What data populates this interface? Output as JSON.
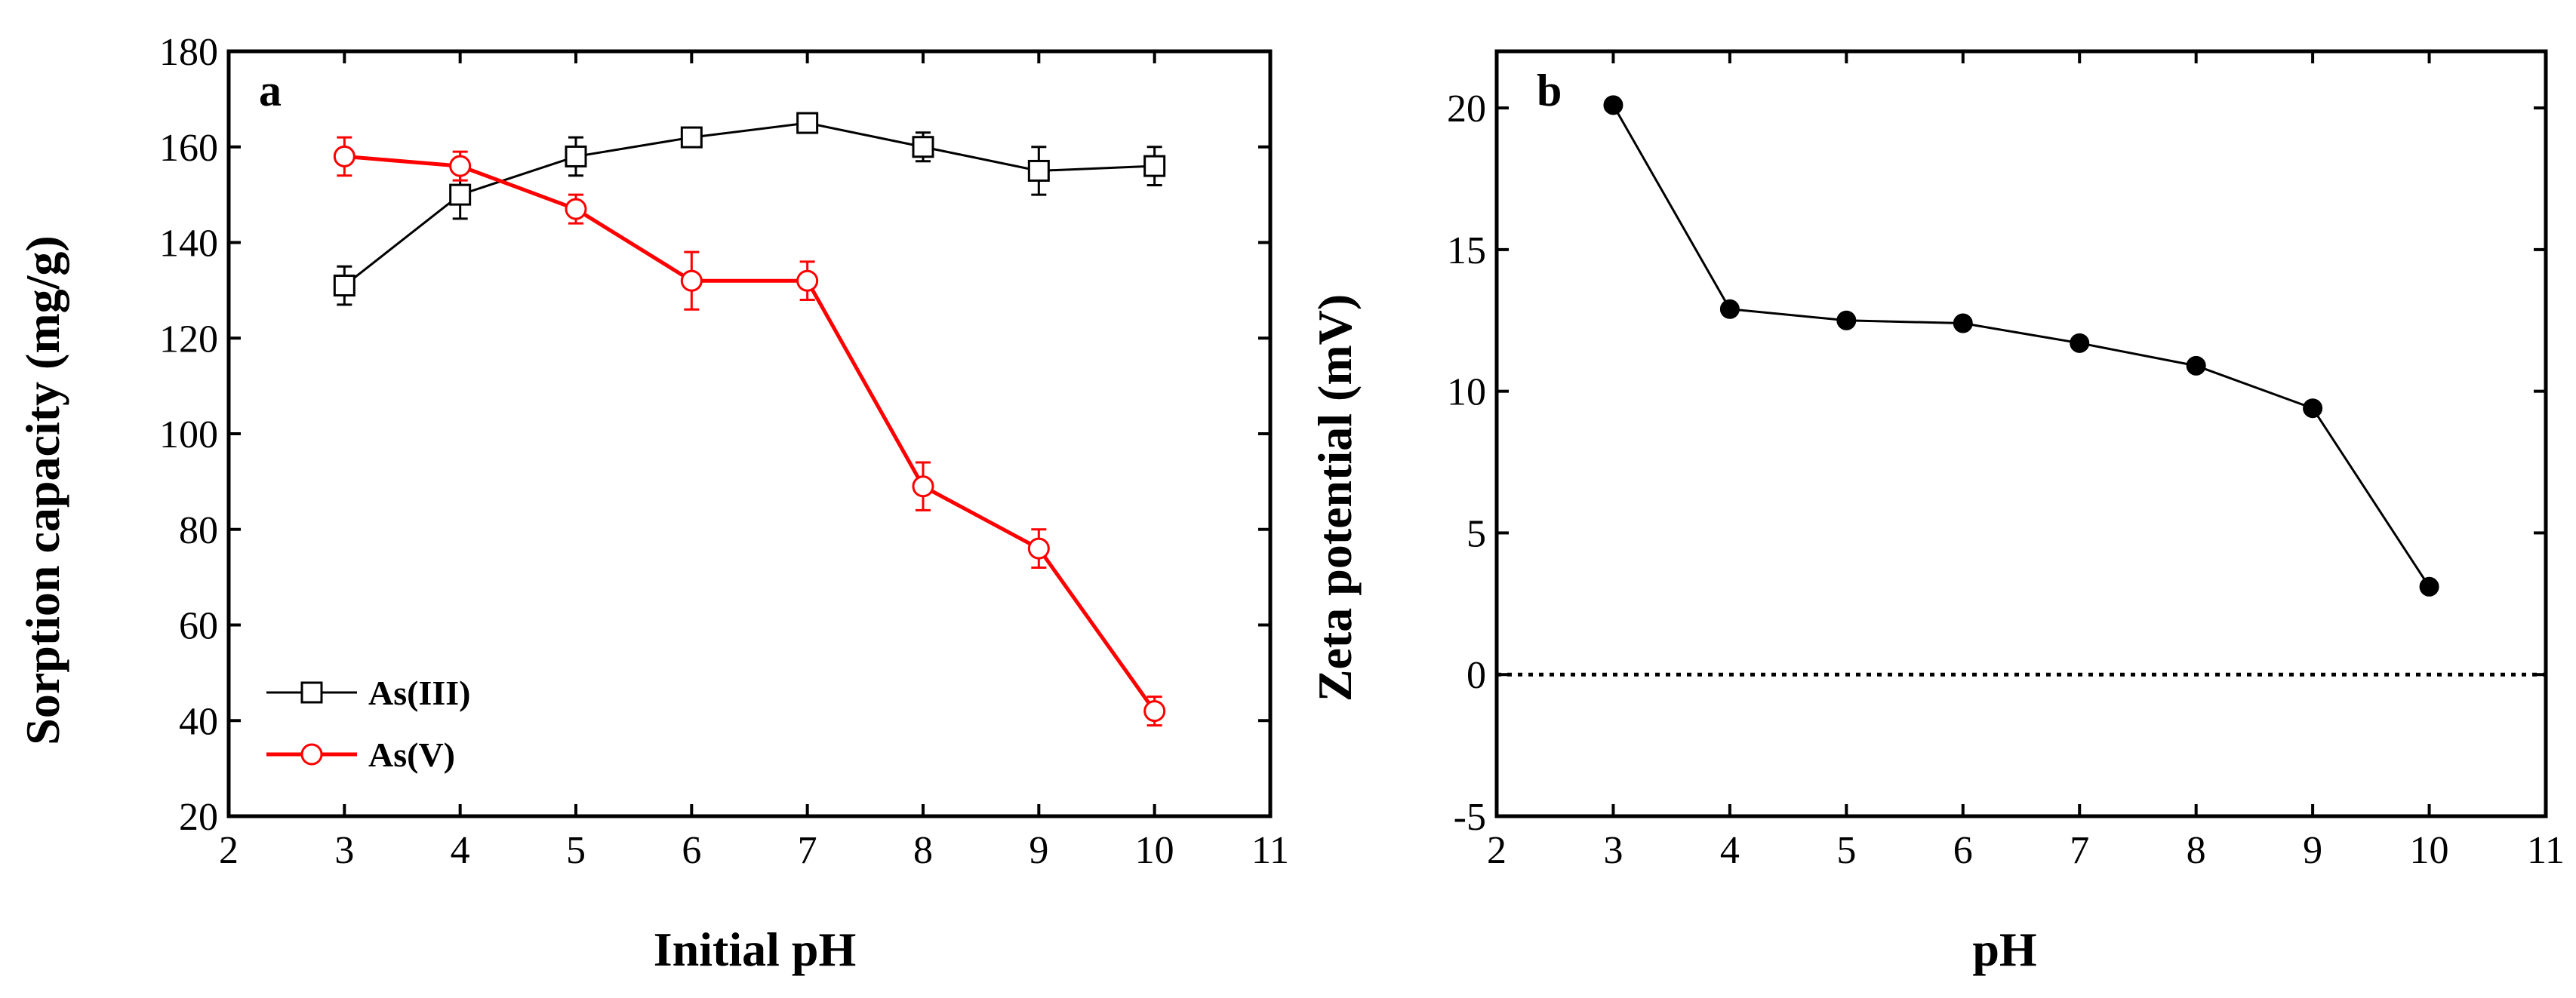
{
  "chart_data": [
    {
      "type": "line",
      "panel_label": "a",
      "xlabel": "Initial pH",
      "ylabel": "Sorption capacity (mg/g)",
      "xlim": [
        2,
        11
      ],
      "ylim": [
        20,
        180
      ],
      "xticks": [
        2,
        3,
        4,
        5,
        6,
        7,
        8,
        9,
        10,
        11
      ],
      "yticks": [
        20,
        40,
        60,
        80,
        100,
        120,
        140,
        160,
        180
      ],
      "legend_position": "bottom-left",
      "series": [
        {
          "name": "As(III)",
          "color": "#000000",
          "marker": "open-square",
          "x": [
            3,
            4,
            5,
            6,
            7,
            8,
            9,
            10
          ],
          "y": [
            131,
            150,
            158,
            162,
            165,
            160,
            155,
            156
          ],
          "error": [
            4,
            5,
            4,
            2,
            2,
            3,
            5,
            4
          ]
        },
        {
          "name": "As(V)",
          "color": "#ff0000",
          "marker": "open-circle",
          "x": [
            3,
            4,
            5,
            6,
            7,
            8,
            9,
            10
          ],
          "y": [
            158,
            156,
            147,
            132,
            132,
            89,
            76,
            42
          ],
          "error": [
            4,
            3,
            3,
            6,
            4,
            5,
            4,
            3
          ]
        }
      ]
    },
    {
      "type": "line",
      "panel_label": "b",
      "xlabel": "pH",
      "ylabel": "Zeta potential (mV)",
      "xlim": [
        2,
        11
      ],
      "ylim": [
        -5,
        22
      ],
      "xticks": [
        2,
        3,
        4,
        5,
        6,
        7,
        8,
        9,
        10,
        11
      ],
      "yticks": [
        -5,
        0,
        5,
        10,
        15,
        20
      ],
      "reference_line": {
        "y": 0,
        "style": "dotted"
      },
      "series": [
        {
          "name": "Zeta potential",
          "color": "#000000",
          "marker": "filled-circle",
          "x": [
            3,
            4,
            5,
            6,
            7,
            8,
            9,
            10
          ],
          "y": [
            20.1,
            12.9,
            12.5,
            12.4,
            11.7,
            10.9,
            9.4,
            3.1
          ]
        }
      ]
    }
  ]
}
